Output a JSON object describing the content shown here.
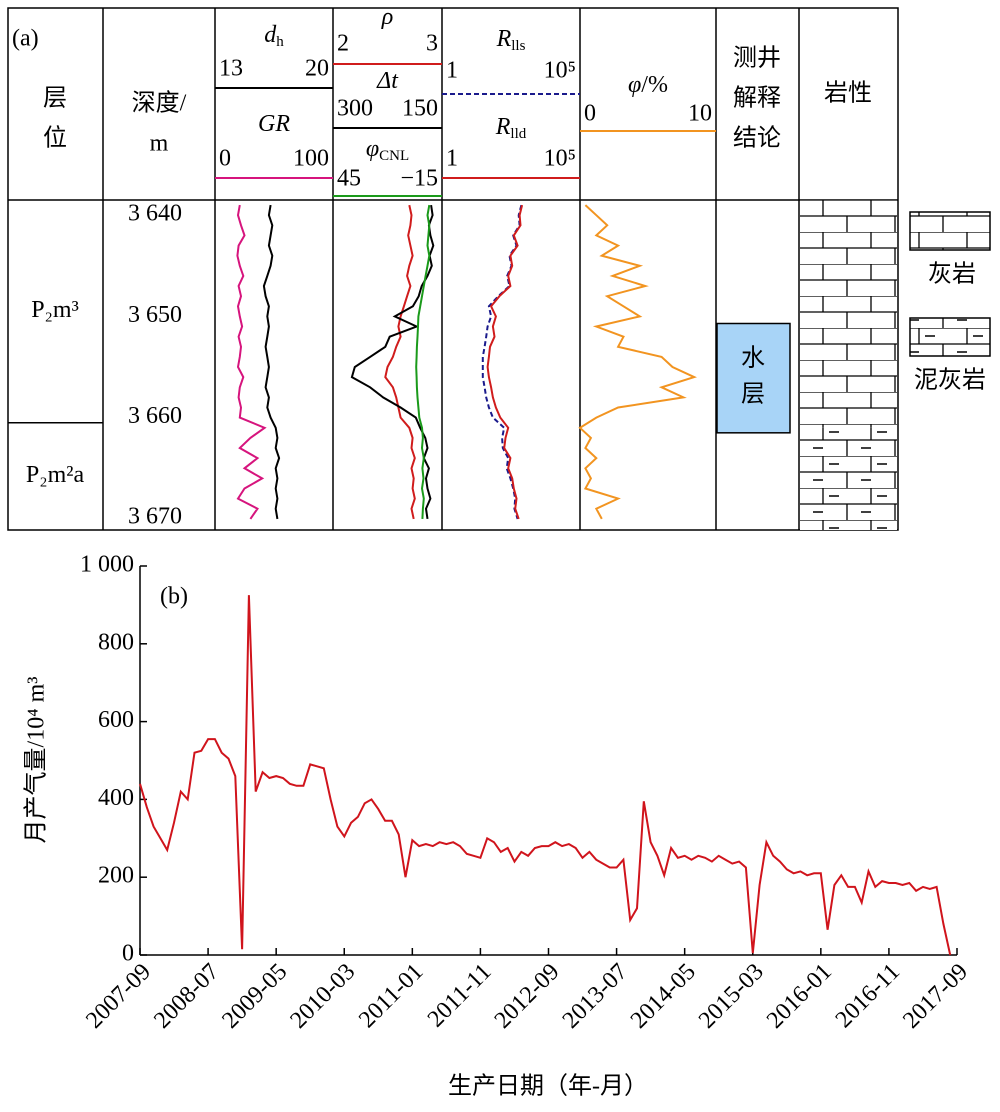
{
  "chart_data": [
    {
      "type": "well_log",
      "panel_label": "(a)",
      "headers": {
        "layer": [
          "层",
          "位"
        ],
        "depth": [
          "深度/",
          "m"
        ],
        "conclusion": [
          "测井",
          "解释",
          "结论"
        ],
        "lithology": "岩性"
      },
      "depth": [
        3639,
        3640,
        3641,
        3642,
        3643,
        3644,
        3645,
        3646,
        3647,
        3648,
        3649,
        3650,
        3651,
        3652,
        3653,
        3654,
        3655,
        3656,
        3657,
        3658,
        3659,
        3660,
        3661,
        3662,
        3663,
        3664,
        3665,
        3666,
        3667,
        3668,
        3669,
        3670
      ],
      "ylim": [
        3638.5,
        3671.1
      ],
      "yticks": [
        {
          "value": 3640,
          "label": "3 640"
        },
        {
          "value": 3650,
          "label": "3 650"
        },
        {
          "value": 3660,
          "label": "3 660"
        },
        {
          "value": 3670,
          "label": "3 670"
        }
      ],
      "tracks": [
        {
          "curves": [
            {
              "symbol": "d",
              "sub": "h",
              "color": "#000000",
              "xlim": [
                13,
                20
              ],
              "xticks": [
                13,
                20
              ],
              "values": [
                16.3,
                16.2,
                16.4,
                16.3,
                16.2,
                16.4,
                16.3,
                16.1,
                15.9,
                16.0,
                16.2,
                16.1,
                16.2,
                16.1,
                16.0,
                16.1,
                16.2,
                16.1,
                16.0,
                16.2,
                16.1,
                16.3,
                16.6,
                16.7,
                16.6,
                16.8,
                16.6,
                16.7,
                16.6,
                16.7,
                16.6,
                16.7
              ]
            },
            {
              "symbol": "GR",
              "color": "#d6147d",
              "xlim": [
                0,
                100
              ],
              "xticks": [
                0,
                100
              ],
              "values": [
                21,
                19.5,
                22,
                25,
                20,
                19,
                21,
                24,
                20,
                22,
                19.5,
                21,
                23,
                20,
                22,
                21,
                19.5,
                24,
                21,
                20,
                22,
                21,
                42,
                30,
                21,
                36,
                25,
                40,
                25,
                19.5,
                36,
                30
              ]
            }
          ]
        },
        {
          "curves": [
            {
              "symbol": "ρ",
              "color": "#d01c1c",
              "xlim": [
                2,
                3
              ],
              "xticks": [
                2,
                3
              ],
              "values": [
                2.7,
                2.72,
                2.71,
                2.69,
                2.71,
                2.73,
                2.7,
                2.68,
                2.71,
                2.68,
                2.65,
                2.62,
                2.6,
                2.62,
                2.58,
                2.55,
                2.5,
                2.48,
                2.55,
                2.58,
                2.6,
                2.62,
                2.7,
                2.73,
                2.72,
                2.75,
                2.72,
                2.74,
                2.73,
                2.75,
                2.72,
                2.74
              ]
            },
            {
              "symbol": "Δt",
              "color": "#000000",
              "xlim": [
                300,
                150
              ],
              "xticks": [
                300,
                150
              ],
              "values": [
                165,
                163,
                168,
                166,
                162,
                167,
                164,
                170,
                178,
                182,
                190,
                215,
                185,
                222,
                228,
                249,
                270,
                274,
                249,
                231,
                207,
                186,
                180,
                173,
                170,
                175,
                168,
                172,
                170,
                166,
                172,
                170
              ]
            },
            {
              "symbol": "φ",
              "sub": "CNL",
              "color": "#1a9a1a",
              "xlim": [
                45,
                -15
              ],
              "xticks": [
                45,
                {
                  "value": -15,
                  "label": "−15"
                }
              ],
              "values": [
                -8,
                -7,
                -8,
                -7.5,
                -7,
                -8,
                -7,
                -6,
                -5,
                -4,
                -3,
                -2,
                -1.8,
                -1.5,
                -1.2,
                -1,
                -0.8,
                -1,
                -1.2,
                -1.5,
                -2,
                -2.5,
                -4,
                -4.5,
                -4,
                -5,
                -4.2,
                -4.8,
                -4,
                -5,
                -4.5,
                -4.2
              ]
            }
          ]
        },
        {
          "curves": [
            {
              "symbol": "R",
              "sub": "lls",
              "color": "#1a1a8c",
              "dashed": true,
              "log": true,
              "xlim": [
                1,
                100000
              ],
              "xticks": [
                1,
                {
                  "value": 100000,
                  "label": "10⁵"
                }
              ],
              "values": [
                750,
                600,
                650,
                380,
                500,
                280,
                330,
                230,
                280,
                110,
                50,
                60,
                45,
                40,
                35,
                30,
                30,
                30,
                35,
                40,
                50,
                70,
                180,
                150,
                160,
                250,
                220,
                300,
                380,
                450,
                420,
                550
              ]
            },
            {
              "symbol": "R",
              "sub": "lld",
              "color": "#d01c1c",
              "log": true,
              "xlim": [
                1,
                100000
              ],
              "xticks": [
                1,
                {
                  "value": 100000,
                  "label": "10⁵"
                }
              ],
              "values": [
                800,
                650,
                700,
                400,
                550,
                300,
                350,
                250,
                300,
                120,
                60,
                90,
                70,
                80,
                55,
                50,
                45,
                50,
                60,
                70,
                90,
                130,
                250,
                200,
                180,
                300,
                250,
                350,
                400,
                500,
                450,
                600
              ]
            }
          ]
        },
        {
          "curves": [
            {
              "symbol": "φ",
              "suffix": "/%",
              "color": "#f29420",
              "xlim": [
                0,
                10
              ],
              "xticks": [
                0,
                10
              ],
              "values": [
                0.4,
                1.2,
                2.0,
                1.2,
                2.8,
                1.6,
                4.4,
                2.4,
                4.8,
                2.0,
                3.2,
                4.4,
                1.2,
                3.2,
                2.8,
                6.0,
                6.8,
                8.4,
                6.0,
                7.6,
                2.8,
                1.2,
                0,
                0.8,
                0.4,
                1.2,
                0.4,
                0.8,
                0.4,
                2.8,
                1.2,
                1.6
              ]
            }
          ]
        }
      ],
      "layers": [
        {
          "name": "P₂m³",
          "interval": [
            3638.5,
            3660.5
          ]
        },
        {
          "name": "P₂m²a",
          "interval": [
            3660.5,
            3671.1
          ]
        }
      ],
      "interpretation": [
        {
          "label": [
            "水",
            "层"
          ],
          "color": "#a8d4f7",
          "interval": [
            3650.7,
            3661.5
          ]
        }
      ],
      "lithology": [
        {
          "name": "灰岩",
          "interval": [
            3638.5,
            3661
          ]
        },
        {
          "name": "泥灰岩",
          "interval": [
            3661,
            3671.1
          ]
        }
      ]
    },
    {
      "type": "line",
      "panel_label": "(b)",
      "ylabel": "月产气量/10⁴ m³",
      "xlabel": "生产日期（年-月）",
      "color": "#d0141c",
      "x": [
        "2007-09",
        "2007-10",
        "2007-11",
        "2007-12",
        "2008-01",
        "2008-02",
        "2008-03",
        "2008-04",
        "2008-05",
        "2008-06",
        "2008-07",
        "2008-08",
        "2008-09",
        "2008-10",
        "2008-11",
        "2008-12",
        "2009-01",
        "2009-02",
        "2009-03",
        "2009-04",
        "2009-05",
        "2009-06",
        "2009-07",
        "2009-08",
        "2009-09",
        "2009-10",
        "2009-11",
        "2009-12",
        "2010-01",
        "2010-02",
        "2010-03",
        "2010-04",
        "2010-05",
        "2010-06",
        "2010-07",
        "2010-08",
        "2010-09",
        "2010-10",
        "2010-11",
        "2010-12",
        "2011-01",
        "2011-02",
        "2011-03",
        "2011-04",
        "2011-05",
        "2011-06",
        "2011-07",
        "2011-08",
        "2011-09",
        "2011-10",
        "2011-11",
        "2011-12",
        "2012-01",
        "2012-02",
        "2012-03",
        "2012-04",
        "2012-05",
        "2012-06",
        "2012-07",
        "2012-08",
        "2012-09",
        "2012-10",
        "2012-11",
        "2012-12",
        "2013-01",
        "2013-02",
        "2013-03",
        "2013-04",
        "2013-05",
        "2013-06",
        "2013-07",
        "2013-08",
        "2013-09",
        "2013-10",
        "2013-11",
        "2013-12",
        "2014-01",
        "2014-02",
        "2014-03",
        "2014-04",
        "2014-05",
        "2014-06",
        "2014-07",
        "2014-08",
        "2014-09",
        "2014-10",
        "2014-11",
        "2014-12",
        "2015-01",
        "2015-02",
        "2015-03",
        "2015-04",
        "2015-05",
        "2015-06",
        "2015-07",
        "2015-08",
        "2015-09",
        "2015-10",
        "2015-11",
        "2015-12",
        "2016-01",
        "2016-02",
        "2016-03",
        "2016-04",
        "2016-05",
        "2016-06",
        "2016-07",
        "2016-08",
        "2016-09",
        "2016-10",
        "2016-11",
        "2016-12",
        "2017-01",
        "2017-02",
        "2017-03",
        "2017-04",
        "2017-05",
        "2017-06",
        "2017-07",
        "2017-08"
      ],
      "values": [
        440,
        380,
        330,
        300,
        270,
        340,
        420,
        400,
        520,
        525,
        555,
        555,
        520,
        505,
        460,
        15,
        925,
        420,
        470,
        455,
        460,
        455,
        440,
        435,
        435,
        490,
        485,
        480,
        400,
        330,
        305,
        340,
        355,
        390,
        400,
        375,
        345,
        345,
        310,
        200,
        295,
        280,
        285,
        280,
        290,
        285,
        290,
        280,
        260,
        255,
        250,
        300,
        290,
        265,
        275,
        240,
        265,
        255,
        275,
        280,
        280,
        290,
        280,
        285,
        275,
        250,
        265,
        245,
        235,
        225,
        225,
        245,
        90,
        120,
        395,
        290,
        255,
        205,
        275,
        250,
        255,
        245,
        255,
        250,
        240,
        255,
        245,
        235,
        240,
        225,
        5,
        180,
        290,
        255,
        240,
        220,
        210,
        215,
        205,
        210,
        210,
        65,
        180,
        205,
        175,
        175,
        135,
        215,
        175,
        190,
        185,
        185,
        180,
        185,
        165,
        175,
        170,
        175,
        80,
        0
      ],
      "xlim": [
        "2007-09",
        "2017-09"
      ],
      "xticks": [
        "2007-09",
        "2008-07",
        "2009-05",
        "2010-03",
        "2011-01",
        "2011-11",
        "2012-09",
        "2013-07",
        "2014-05",
        "2015-03",
        "2016-01",
        "2016-11",
        "2017-09"
      ],
      "ylim": [
        0,
        1000
      ],
      "yticks": [
        0,
        200,
        400,
        600,
        800,
        {
          "value": 1000,
          "label": "1 000"
        }
      ]
    }
  ]
}
